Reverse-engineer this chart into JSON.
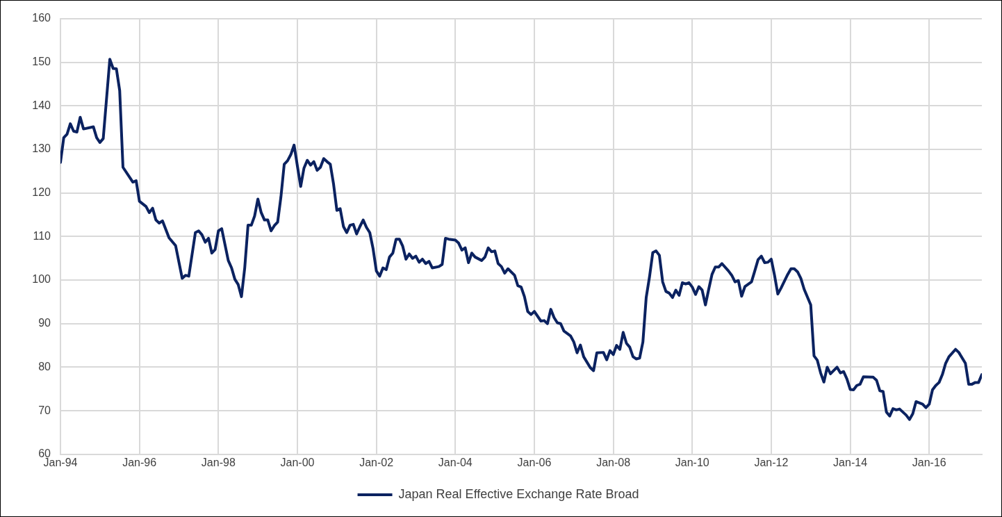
{
  "chart_data": {
    "type": "line",
    "xlim": [
      "1994-01",
      "2017-05"
    ],
    "xticks": [
      {
        "value": "1994-01",
        "label": "Jan-94"
      },
      {
        "value": "1996-01",
        "label": "Jan-96"
      },
      {
        "value": "1998-01",
        "label": "Jan-98"
      },
      {
        "value": "2000-01",
        "label": "Jan-00"
      },
      {
        "value": "2002-01",
        "label": "Jan-02"
      },
      {
        "value": "2004-01",
        "label": "Jan-04"
      },
      {
        "value": "2006-01",
        "label": "Jan-06"
      },
      {
        "value": "2008-01",
        "label": "Jan-08"
      },
      {
        "value": "2010-01",
        "label": "Jan-10"
      },
      {
        "value": "2012-01",
        "label": "Jan-12"
      },
      {
        "value": "2014-01",
        "label": "Jan-14"
      },
      {
        "value": "2016-01",
        "label": "Jan-16"
      }
    ],
    "ylim": [
      60,
      160
    ],
    "yticks": [
      60,
      70,
      80,
      90,
      100,
      110,
      120,
      130,
      140,
      150,
      160
    ],
    "grid": true,
    "legend": "bottom",
    "marker": "none",
    "line_style": "solid",
    "x": [
      "1994-01",
      "1994-02",
      "1994-03",
      "1994-04",
      "1994-05",
      "1994-06",
      "1994-07",
      "1994-08",
      "1994-11",
      "1994-12",
      "1995-01",
      "1995-02",
      "1995-04",
      "1995-05",
      "1995-06",
      "1995-07",
      "1995-08",
      "1995-11",
      "1995-12",
      "1996-01",
      "1996-03",
      "1996-04",
      "1996-05",
      "1996-06",
      "1996-07",
      "1996-08",
      "1996-10",
      "1996-12",
      "1997-02",
      "1997-03",
      "1997-04",
      "1997-06",
      "1997-07",
      "1997-08",
      "1997-09",
      "1997-10",
      "1997-11",
      "1997-12",
      "1998-01",
      "1998-02",
      "1998-04",
      "1998-05",
      "1998-06",
      "1998-07",
      "1998-08",
      "1998-09",
      "1998-10",
      "1998-11",
      "1998-12",
      "1999-01",
      "1999-02",
      "1999-03",
      "1999-04",
      "1999-05",
      "1999-06",
      "1999-07",
      "1999-08",
      "1999-09",
      "1999-10",
      "1999-11",
      "1999-12",
      "2000-01",
      "2000-02",
      "2000-03",
      "2000-04",
      "2000-05",
      "2000-06",
      "2000-07",
      "2000-08",
      "2000-09",
      "2000-10",
      "2000-11",
      "2000-12",
      "2001-01",
      "2001-02",
      "2001-03",
      "2001-04",
      "2001-05",
      "2001-06",
      "2001-07",
      "2001-08",
      "2001-09",
      "2001-10",
      "2001-11",
      "2001-12",
      "2002-01",
      "2002-02",
      "2002-03",
      "2002-04",
      "2002-05",
      "2002-06",
      "2002-07",
      "2002-08",
      "2002-09",
      "2002-10",
      "2002-11",
      "2002-12",
      "2003-01",
      "2003-02",
      "2003-03",
      "2003-04",
      "2003-05",
      "2003-06",
      "2003-08",
      "2003-09",
      "2003-10",
      "2003-11",
      "2004-01",
      "2004-02",
      "2004-03",
      "2004-04",
      "2004-05",
      "2004-06",
      "2004-07",
      "2004-09",
      "2004-10",
      "2004-11",
      "2004-12",
      "2005-01",
      "2005-02",
      "2005-03",
      "2005-04",
      "2005-05",
      "2005-07",
      "2005-08",
      "2005-09",
      "2005-10",
      "2005-11",
      "2005-12",
      "2006-01",
      "2006-03",
      "2006-04",
      "2006-05",
      "2006-06",
      "2006-07",
      "2006-08",
      "2006-09",
      "2006-10",
      "2006-12",
      "2007-01",
      "2007-02",
      "2007-03",
      "2007-04",
      "2007-06",
      "2007-07",
      "2007-08",
      "2007-10",
      "2007-11",
      "2007-12",
      "2008-01",
      "2008-02",
      "2008-03",
      "2008-04",
      "2008-05",
      "2008-06",
      "2008-07",
      "2008-08",
      "2008-09",
      "2008-10",
      "2008-11",
      "2008-12",
      "2009-01",
      "2009-02",
      "2009-03",
      "2009-04",
      "2009-05",
      "2009-06",
      "2009-07",
      "2009-08",
      "2009-09",
      "2009-10",
      "2009-11",
      "2009-12",
      "2010-01",
      "2010-02",
      "2010-03",
      "2010-04",
      "2010-05",
      "2010-06",
      "2010-07",
      "2010-08",
      "2010-09",
      "2010-10",
      "2010-12",
      "2011-01",
      "2011-02",
      "2011-03",
      "2011-04",
      "2011-05",
      "2011-07",
      "2011-08",
      "2011-09",
      "2011-10",
      "2011-11",
      "2011-12",
      "2012-01",
      "2012-02",
      "2012-03",
      "2012-04",
      "2012-06",
      "2012-07",
      "2012-08",
      "2012-09",
      "2012-10",
      "2012-11",
      "2013-01",
      "2013-02",
      "2013-03",
      "2013-04",
      "2013-05",
      "2013-06",
      "2013-07",
      "2013-09",
      "2013-10",
      "2013-11",
      "2013-12",
      "2014-01",
      "2014-02",
      "2014-03",
      "2014-04",
      "2014-05",
      "2014-08",
      "2014-09",
      "2014-10",
      "2014-11",
      "2014-12",
      "2015-01",
      "2015-02",
      "2015-03",
      "2015-04",
      "2015-06",
      "2015-07",
      "2015-08",
      "2015-09",
      "2015-11",
      "2015-12",
      "2016-01",
      "2016-02",
      "2016-03",
      "2016-04",
      "2016-05",
      "2016-06",
      "2016-07",
      "2016-09",
      "2016-10",
      "2016-12",
      "2017-01",
      "2017-02",
      "2017-03",
      "2017-04",
      "2017-05"
    ],
    "series": [
      {
        "name": "Japan Real Effective Exchange Rate Broad",
        "color": "#0b2260",
        "values": [
          127,
          132.7,
          133.5,
          135.9,
          134.2,
          134,
          137.4,
          134.7,
          135.2,
          132.7,
          131.6,
          132.5,
          150.7,
          148.6,
          148.5,
          143.5,
          125.9,
          122.5,
          122.8,
          118.1,
          116.9,
          115.5,
          116.5,
          113.8,
          113.1,
          113.6,
          109.7,
          107.9,
          100.4,
          101.1,
          100.9,
          110.9,
          111.3,
          110.4,
          108.7,
          109.6,
          106.2,
          107,
          111.3,
          111.8,
          104.5,
          102.8,
          100.2,
          99,
          96.2,
          102.8,
          112.6,
          112.6,
          114.7,
          118.6,
          115.5,
          113.8,
          113.8,
          111.3,
          112.5,
          113.3,
          119.1,
          126.6,
          127.4,
          128.8,
          131,
          126.2,
          121.5,
          125.7,
          127.5,
          126.4,
          127.2,
          125.2,
          125.9,
          127.9,
          127.2,
          126.6,
          122,
          116,
          116.4,
          112.3,
          110.9,
          112.6,
          112.8,
          110.6,
          112.3,
          113.8,
          112.1,
          110.9,
          107.2,
          102.1,
          100.9,
          102.8,
          102.4,
          105.3,
          106.2,
          109.4,
          109.4,
          107.8,
          104.8,
          106,
          105,
          105.5,
          104.1,
          104.8,
          103.8,
          104.3,
          102.8,
          103.1,
          103.6,
          109.6,
          109.4,
          109.2,
          108.5,
          106.9,
          107.4,
          104,
          106.2,
          105.3,
          104.5,
          105.3,
          107.4,
          106.5,
          106.7,
          103.8,
          103.1,
          101.6,
          102.6,
          101.1,
          98.7,
          98.4,
          96.2,
          92.8,
          92.1,
          92.8,
          90.6,
          90.7,
          90,
          93.3,
          91.4,
          90.2,
          90,
          88.3,
          87.2,
          85.8,
          83.3,
          85.1,
          82.4,
          79.9,
          79.2,
          83.3,
          83.4,
          81.7,
          83.8,
          82.9,
          85,
          84.1,
          88,
          85.5,
          84.6,
          82.4,
          81.9,
          82.1,
          85.8,
          96,
          100.7,
          106.3,
          106.7,
          105.7,
          99.6,
          97.4,
          97,
          96,
          97.7,
          96.5,
          99.4,
          99.1,
          99.4,
          98.4,
          96.7,
          98.5,
          97.7,
          94.3,
          97.9,
          101.3,
          103,
          103,
          103.8,
          102.1,
          101.1,
          99.6,
          99.9,
          96.3,
          98.5,
          99.6,
          102.1,
          104.7,
          105.5,
          104,
          104.1,
          104.8,
          101.1,
          96.8,
          98.2,
          101.3,
          102.6,
          102.6,
          101.9,
          100.4,
          97.9,
          94.3,
          82.6,
          81.6,
          78.7,
          76.6,
          80,
          78.5,
          80,
          78.7,
          79,
          77.3,
          74.9,
          74.8,
          75.8,
          76.1,
          77.8,
          77.7,
          77,
          74.6,
          74.4,
          69.7,
          68.8,
          70.5,
          70.2,
          70.4,
          69,
          68,
          69.3,
          72.1,
          71.5,
          70.7,
          71.5,
          74.8,
          75.8,
          76.5,
          78.3,
          80.9,
          82.4,
          84.1,
          83.4,
          80.9,
          76.1,
          76.1,
          76.5,
          76.5,
          78.3
        ]
      }
    ]
  }
}
